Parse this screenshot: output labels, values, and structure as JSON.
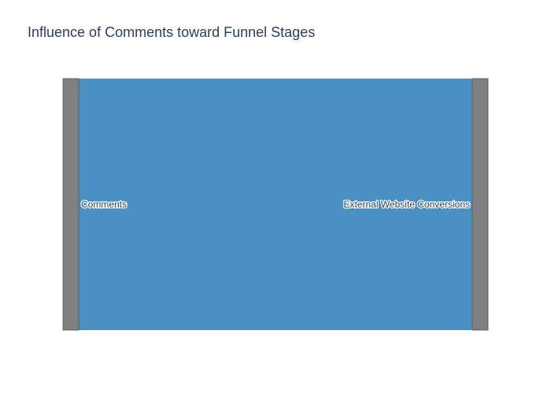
{
  "chart_data": {
    "type": "sankey",
    "title": "Influence of Comments toward Funnel Stages",
    "nodes": [
      {
        "label": "Comments",
        "color": "#808080"
      },
      {
        "label": "External Website Conversions",
        "color": "#808080"
      }
    ],
    "links": [
      {
        "source": 0,
        "target": 1,
        "value": 1,
        "color": "#4a90c2"
      }
    ],
    "colors": {
      "title": "#2a3f5f",
      "node_fill": "#808080",
      "node_stroke": "#555555",
      "link": "#4a90c2",
      "label": "#2a3f5f",
      "background": "#ffffff"
    }
  }
}
